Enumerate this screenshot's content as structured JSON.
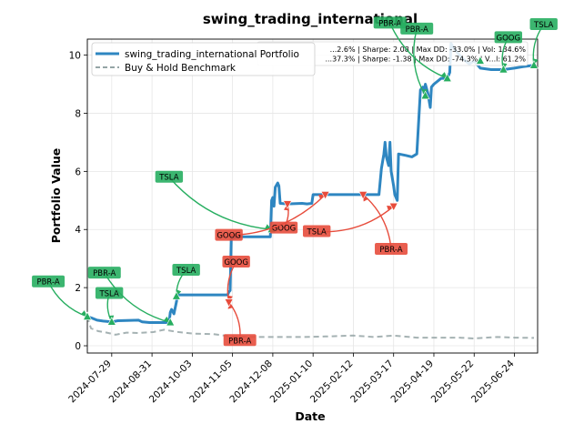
{
  "chart_data": {
    "type": "line",
    "title": "swing_trading_international",
    "xlabel": "Date",
    "ylabel": "Portfolio Value",
    "ylim": [
      -0.25,
      10.55
    ],
    "yticks": [
      0,
      2,
      4,
      6,
      8,
      10
    ],
    "x_date_range": [
      "2024-07-09",
      "2025-07-13"
    ],
    "xticks": [
      "2024-07-29",
      "2024-08-31",
      "2024-10-03",
      "2024-11-05",
      "2024-12-08",
      "2025-01-10",
      "2025-02-12",
      "2025-03-17",
      "2025-04-19",
      "2025-05-22",
      "2025-06-24"
    ],
    "grid": true,
    "legend": {
      "placement": "top-left",
      "entries": [
        "swing_trading_international Portfolio",
        "Buy & Hold Benchmark"
      ]
    },
    "stats_box": [
      "...2.6% | Sharpe: 2.08 | Max DD: -33.0% | Vol: 134.6%",
      "...37.3% | Sharpe: -1.38 | Max DD: -74.3% | V...l: 61.2%"
    ],
    "colors": {
      "portfolio": "#2e86c1",
      "benchmark": "#95a5a6",
      "buy": "#27ae60",
      "sell": "#e74c3c"
    },
    "series": [
      {
        "name": "swing_trading_international Portfolio",
        "style": "solid",
        "points": [
          [
            "2024-07-09",
            1.0
          ],
          [
            "2024-07-13",
            0.95
          ],
          [
            "2024-07-17",
            0.88
          ],
          [
            "2024-07-22",
            0.85
          ],
          [
            "2024-07-29",
            0.82
          ],
          [
            "2024-08-03",
            0.86
          ],
          [
            "2024-08-10",
            0.87
          ],
          [
            "2024-08-20",
            0.88
          ],
          [
            "2024-08-23",
            0.82
          ],
          [
            "2024-08-29",
            0.8
          ],
          [
            "2024-09-12",
            0.8
          ],
          [
            "2024-09-14",
            0.8
          ],
          [
            "2024-09-15",
            1.15
          ],
          [
            "2024-09-16",
            1.25
          ],
          [
            "2024-09-18",
            1.1
          ],
          [
            "2024-09-20",
            1.5
          ],
          [
            "2024-09-21",
            1.75
          ],
          [
            "2024-10-01",
            1.75
          ],
          [
            "2024-10-15",
            1.75
          ],
          [
            "2024-11-01",
            1.75
          ],
          [
            "2024-11-02",
            1.85
          ],
          [
            "2024-11-03",
            1.9
          ],
          [
            "2024-11-04",
            3.8
          ],
          [
            "2024-11-05",
            3.7
          ],
          [
            "2024-11-10",
            3.75
          ],
          [
            "2024-11-20",
            3.75
          ],
          [
            "2024-12-06",
            3.75
          ],
          [
            "2024-12-07",
            5.0
          ],
          [
            "2024-12-08",
            5.1
          ],
          [
            "2024-12-09",
            4.8
          ],
          [
            "2024-12-10",
            5.45
          ],
          [
            "2024-12-12",
            5.6
          ],
          [
            "2024-12-13",
            5.5
          ],
          [
            "2024-12-14",
            4.9
          ],
          [
            "2024-12-20",
            4.88
          ],
          [
            "2025-01-01",
            4.9
          ],
          [
            "2025-01-05",
            4.88
          ],
          [
            "2025-01-09",
            4.9
          ],
          [
            "2025-01-10",
            5.2
          ],
          [
            "2025-02-05",
            5.2
          ],
          [
            "2025-02-10",
            5.2
          ],
          [
            "2025-02-20",
            5.2
          ],
          [
            "2025-03-05",
            5.2
          ],
          [
            "2025-03-07",
            6.1
          ],
          [
            "2025-03-09",
            6.6
          ],
          [
            "2025-03-10",
            7.0
          ],
          [
            "2025-03-11",
            6.5
          ],
          [
            "2025-03-13",
            6.2
          ],
          [
            "2025-03-14",
            7.0
          ],
          [
            "2025-03-15",
            6.0
          ],
          [
            "2025-03-17",
            5.5
          ],
          [
            "2025-03-18",
            5.2
          ],
          [
            "2025-03-20",
            5.0
          ],
          [
            "2025-03-21",
            6.6
          ],
          [
            "2025-03-27",
            6.55
          ],
          [
            "2025-04-01",
            6.5
          ],
          [
            "2025-04-05",
            6.6
          ],
          [
            "2025-04-08",
            8.8
          ],
          [
            "2025-04-10",
            8.9
          ],
          [
            "2025-04-11",
            8.7
          ],
          [
            "2025-04-12",
            9.0
          ],
          [
            "2025-04-14",
            8.7
          ],
          [
            "2025-04-16",
            8.2
          ],
          [
            "2025-04-17",
            8.9
          ],
          [
            "2025-04-19",
            9.0
          ],
          [
            "2025-04-25",
            9.2
          ],
          [
            "2025-04-30",
            9.2
          ],
          [
            "2025-05-02",
            9.4
          ],
          [
            "2025-05-03",
            10.4
          ],
          [
            "2025-05-06",
            10.2
          ],
          [
            "2025-05-12",
            9.9
          ],
          [
            "2025-05-18",
            9.7
          ],
          [
            "2025-05-22",
            9.8
          ],
          [
            "2025-05-27",
            9.55
          ],
          [
            "2025-06-05",
            9.5
          ],
          [
            "2025-06-15",
            9.5
          ],
          [
            "2025-06-24",
            9.55
          ],
          [
            "2025-07-01",
            9.6
          ],
          [
            "2025-07-10",
            9.65
          ]
        ]
      },
      {
        "name": "Buy & Hold Benchmark",
        "style": "dashed",
        "points": [
          [
            "2024-07-09",
            1.0
          ],
          [
            "2024-07-12",
            0.6
          ],
          [
            "2024-07-18",
            0.5
          ],
          [
            "2024-07-25",
            0.45
          ],
          [
            "2024-08-01",
            0.38
          ],
          [
            "2024-08-10",
            0.45
          ],
          [
            "2024-08-20",
            0.44
          ],
          [
            "2024-09-01",
            0.47
          ],
          [
            "2024-09-10",
            0.55
          ],
          [
            "2024-09-20",
            0.48
          ],
          [
            "2024-10-03",
            0.42
          ],
          [
            "2024-10-20",
            0.4
          ],
          [
            "2024-11-05",
            0.32
          ],
          [
            "2024-11-20",
            0.3
          ],
          [
            "2024-12-08",
            0.3
          ],
          [
            "2025-01-01",
            0.3
          ],
          [
            "2025-01-20",
            0.32
          ],
          [
            "2025-02-12",
            0.35
          ],
          [
            "2025-03-01",
            0.3
          ],
          [
            "2025-03-17",
            0.35
          ],
          [
            "2025-04-05",
            0.28
          ],
          [
            "2025-04-19",
            0.28
          ],
          [
            "2025-05-10",
            0.28
          ],
          [
            "2025-05-22",
            0.25
          ],
          [
            "2025-06-10",
            0.3
          ],
          [
            "2025-06-24",
            0.28
          ],
          [
            "2025-07-10",
            0.27
          ]
        ]
      }
    ],
    "trade_annotations": [
      {
        "label": "PBR-A",
        "side": "buy",
        "date": "2024-07-09",
        "value": 1.0,
        "text_at": [
          "2024-06-07",
          2.2
        ]
      },
      {
        "label": "TSLA",
        "side": "buy",
        "date": "2024-07-29",
        "value": 0.82,
        "text_at": [
          "2024-07-27",
          1.8
        ]
      },
      {
        "label": "PBR-A",
        "side": "buy",
        "date": "2024-09-15",
        "value": 0.8,
        "text_at": [
          "2024-07-23",
          2.5
        ]
      },
      {
        "label": "TSLA",
        "side": "buy",
        "date": "2024-09-20",
        "value": 1.7,
        "text_at": [
          "2024-09-28",
          2.6
        ]
      },
      {
        "label": "TSLA",
        "side": "buy",
        "date": "2024-12-07",
        "value": 4.0,
        "text_at": [
          "2024-09-14",
          5.8
        ]
      },
      {
        "label": "GOOG",
        "side": "sell",
        "date": "2024-11-02",
        "value": 1.5,
        "text_at": [
          "2024-11-08",
          2.88
        ]
      },
      {
        "label": "PBR-A",
        "side": "sell",
        "date": "2024-11-02",
        "value": 1.5,
        "text_at": [
          "2024-11-11",
          0.18
        ]
      },
      {
        "label": "GOOG",
        "side": "sell",
        "date": "2024-12-20",
        "value": 4.88,
        "text_at": [
          "2024-12-17",
          4.05
        ]
      },
      {
        "label": "TSLA",
        "side": "sell",
        "date": "2025-03-17",
        "value": 4.8,
        "text_at": [
          "2025-01-13",
          3.93
        ]
      },
      {
        "label": "GOOG",
        "side": "sell",
        "date": "2025-01-20",
        "value": 5.2,
        "text_at": [
          "2024-11-02",
          3.8
        ]
      },
      {
        "label": "PBR-A",
        "side": "sell",
        "date": "2025-02-20",
        "value": 5.2,
        "text_at": [
          "2025-03-15",
          3.32
        ]
      },
      {
        "label": "PBR-A",
        "side": "buy",
        "date": "2025-04-30",
        "value": 9.2,
        "text_at": [
          "2025-03-14",
          11.1
        ]
      },
      {
        "label": "PBR-A",
        "side": "buy",
        "date": "2025-04-12",
        "value": 8.6,
        "text_at": [
          "2025-04-05",
          10.9
        ]
      },
      {
        "label": "GOOG",
        "side": "buy",
        "date": "2025-06-15",
        "value": 9.5,
        "text_at": [
          "2025-06-19",
          10.6
        ]
      },
      {
        "label": "TSLA",
        "side": "buy",
        "date": "2025-07-10",
        "value": 9.65,
        "text_at": [
          "2025-07-18",
          11.05
        ]
      },
      {
        "label": "",
        "side": "buy",
        "date": "2025-05-27",
        "value": 9.8,
        "text_at": null
      }
    ]
  }
}
